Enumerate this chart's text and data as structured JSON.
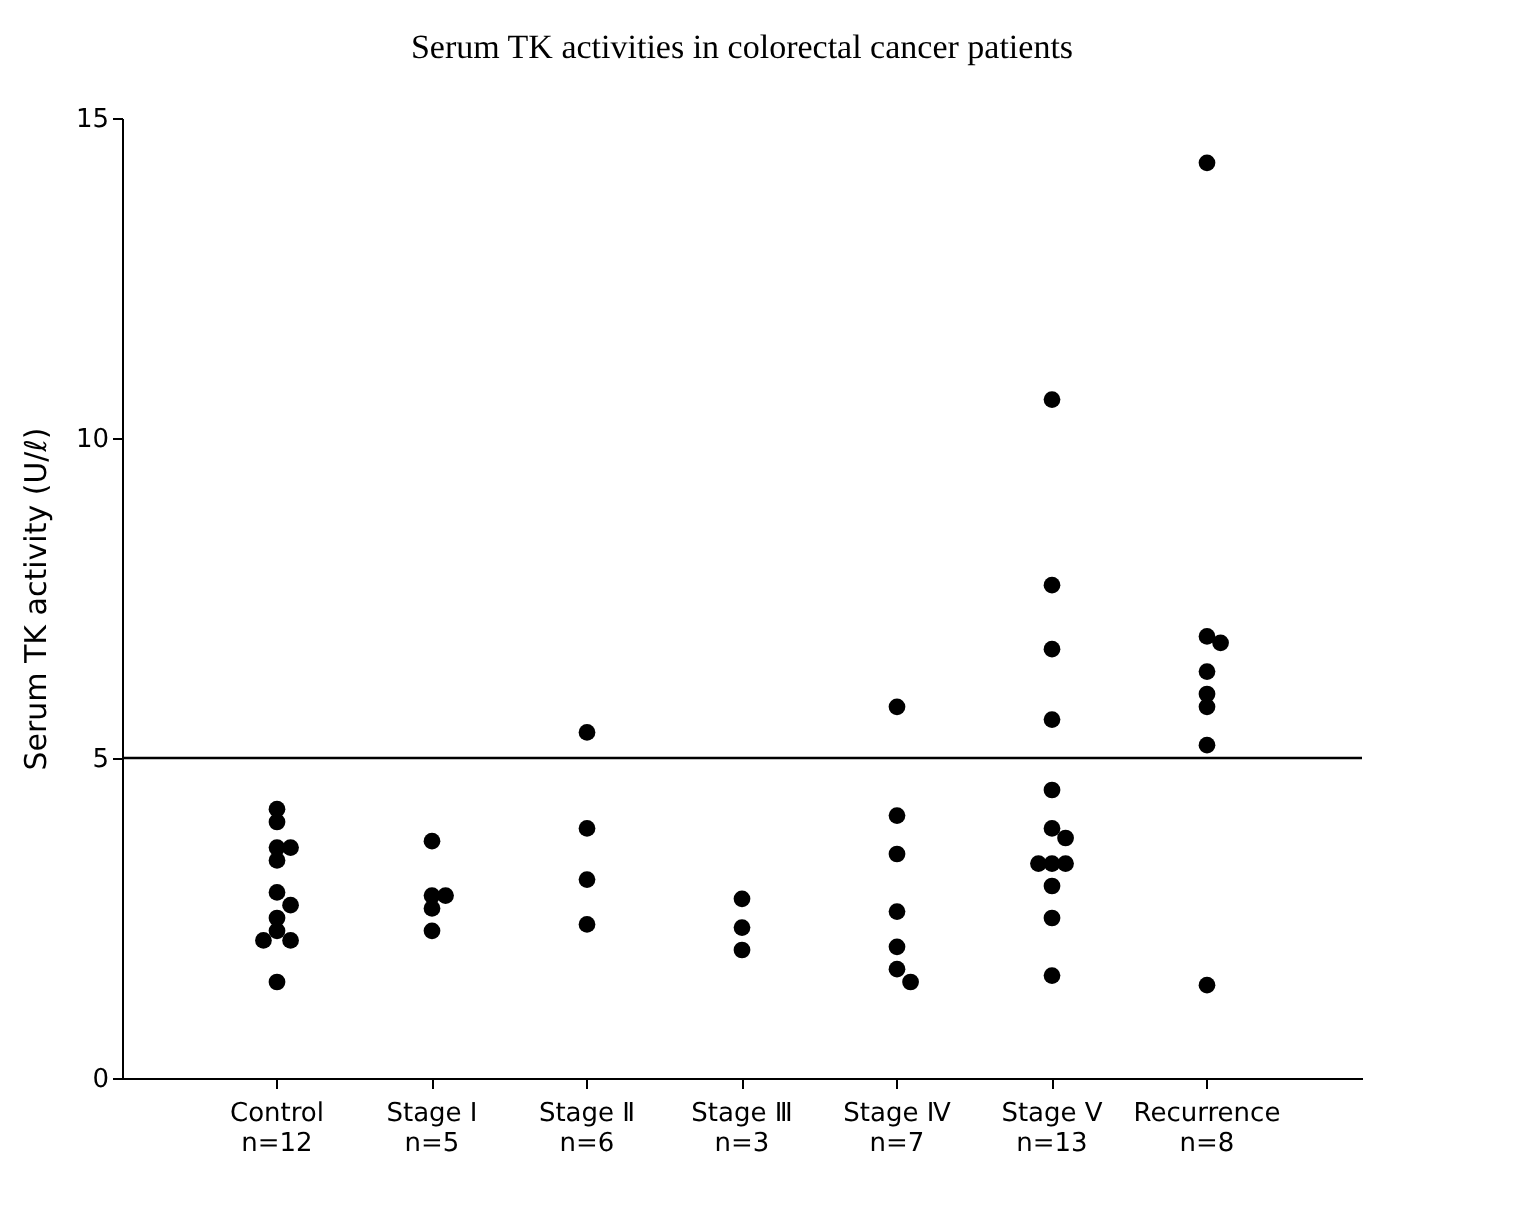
{
  "chart_data": {
    "type": "scatter",
    "title": "Serum TK activities in colorectal cancer patients",
    "ylabel": "Serum TK activity (U/ℓ)",
    "categories": [
      "Control\nn=12",
      "Stage Ⅰ\nn=5",
      "Stage Ⅱ\nn=6",
      "Stage Ⅲ\nn=3",
      "Stage Ⅳ\nn=7",
      "Stage Ⅴ\nn=13",
      "Recurrence\nn=8"
    ],
    "series": [
      {
        "color": "#000000",
        "x": [
          "Control\nn=12",
          "Control\nn=12",
          "Control\nn=12",
          "Control\nn=12",
          "Control\nn=12",
          "Control\nn=12",
          "Control\nn=12",
          "Control\nn=12",
          "Control\nn=12",
          "Control\nn=12",
          "Control\nn=12",
          "Control\nn=12",
          "Stage Ⅰ\nn=5",
          "Stage Ⅰ\nn=5",
          "Stage Ⅰ\nn=5",
          "Stage Ⅰ\nn=5",
          "Stage Ⅰ\nn=5",
          "Stage Ⅱ\nn=6",
          "Stage Ⅱ\nn=6",
          "Stage Ⅱ\nn=6",
          "Stage Ⅱ\nn=6",
          "Stage Ⅲ\nn=3",
          "Stage Ⅲ\nn=3",
          "Stage Ⅲ\nn=3",
          "Stage Ⅳ\nn=7",
          "Stage Ⅳ\nn=7",
          "Stage Ⅳ\nn=7",
          "Stage Ⅳ\nn=7",
          "Stage Ⅳ\nn=7",
          "Stage Ⅳ\nn=7",
          "Stage Ⅳ\nn=7",
          "Stage Ⅴ\nn=13",
          "Stage Ⅴ\nn=13",
          "Stage Ⅴ\nn=13",
          "Stage Ⅴ\nn=13",
          "Stage Ⅴ\nn=13",
          "Stage Ⅴ\nn=13",
          "Stage Ⅴ\nn=13",
          "Stage Ⅴ\nn=13",
          "Stage Ⅴ\nn=13",
          "Stage Ⅴ\nn=13",
          "Stage Ⅴ\nn=13",
          "Stage Ⅴ\nn=13",
          "Stage Ⅴ\nn=13",
          "Recurrence\nn=8",
          "Recurrence\nn=8",
          "Recurrence\nn=8",
          "Recurrence\nn=8",
          "Recurrence\nn=8",
          "Recurrence\nn=8",
          "Recurrence\nn=8",
          "Recurrence\nn=8"
        ],
        "values": [
          4.2,
          4.0,
          3.6,
          3.6,
          3.4,
          2.9,
          2.7,
          2.5,
          2.3,
          2.15,
          2.15,
          1.5,
          3.7,
          2.85,
          2.85,
          2.65,
          2.3,
          5.4,
          3.9,
          3.1,
          2.4,
          2.8,
          2.35,
          2.0,
          5.8,
          4.1,
          3.5,
          2.6,
          2.05,
          1.7,
          1.5,
          10.6,
          7.7,
          6.7,
          5.6,
          4.5,
          3.9,
          3.75,
          3.35,
          3.35,
          3.35,
          3.0,
          2.5,
          1.6,
          14.3,
          6.9,
          6.8,
          6.35,
          6.0,
          5.8,
          5.2,
          1.45
        ]
      }
    ],
    "ylim": [
      0,
      15
    ],
    "yticks": [
      0,
      5,
      10,
      15
    ],
    "grid": false,
    "marker": "circle",
    "ref_lines": [
      {
        "axis": "y",
        "value": 5,
        "color": "#000000",
        "line_style": "solid"
      }
    ]
  }
}
